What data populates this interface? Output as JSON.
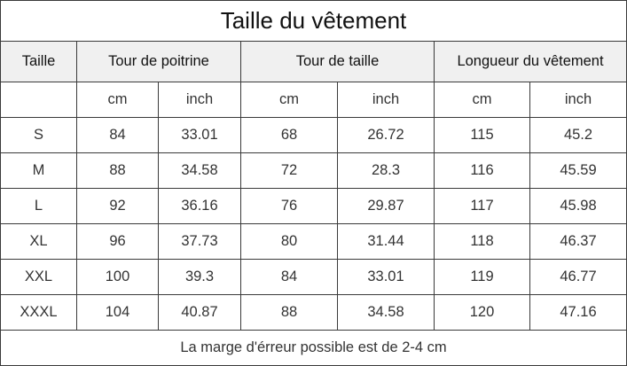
{
  "title": "Taille du vêtement",
  "header": {
    "size": "Taille",
    "chest": "Tour de poitrine",
    "waist": "Tour de taille",
    "length": "Longueur du vêtement"
  },
  "units": [
    "cm",
    "inch",
    "cm",
    "inch",
    "cm",
    "inch"
  ],
  "rows": [
    {
      "size": "S",
      "chest_cm": "84",
      "chest_inch": "33.01",
      "waist_cm": "68",
      "waist_inch": "26.72",
      "length_cm": "115",
      "length_inch": "45.2"
    },
    {
      "size": "M",
      "chest_cm": "88",
      "chest_inch": "34.58",
      "waist_cm": "72",
      "waist_inch": "28.3",
      "length_cm": "116",
      "length_inch": "45.59"
    },
    {
      "size": "L",
      "chest_cm": "92",
      "chest_inch": "36.16",
      "waist_cm": "76",
      "waist_inch": "29.87",
      "length_cm": "117",
      "length_inch": "45.98"
    },
    {
      "size": "XL",
      "chest_cm": "96",
      "chest_inch": "37.73",
      "waist_cm": "80",
      "waist_inch": "31.44",
      "length_cm": "118",
      "length_inch": "46.37"
    },
    {
      "size": "XXL",
      "chest_cm": "100",
      "chest_inch": "39.3",
      "waist_cm": "84",
      "waist_inch": "33.01",
      "length_cm": "119",
      "length_inch": "46.77"
    },
    {
      "size": "XXXL",
      "chest_cm": "104",
      "chest_inch": "40.87",
      "waist_cm": "88",
      "waist_inch": "34.58",
      "length_cm": "120",
      "length_inch": "47.16"
    }
  ],
  "note": "La marge d'érreur possible est de 2-4 cm"
}
